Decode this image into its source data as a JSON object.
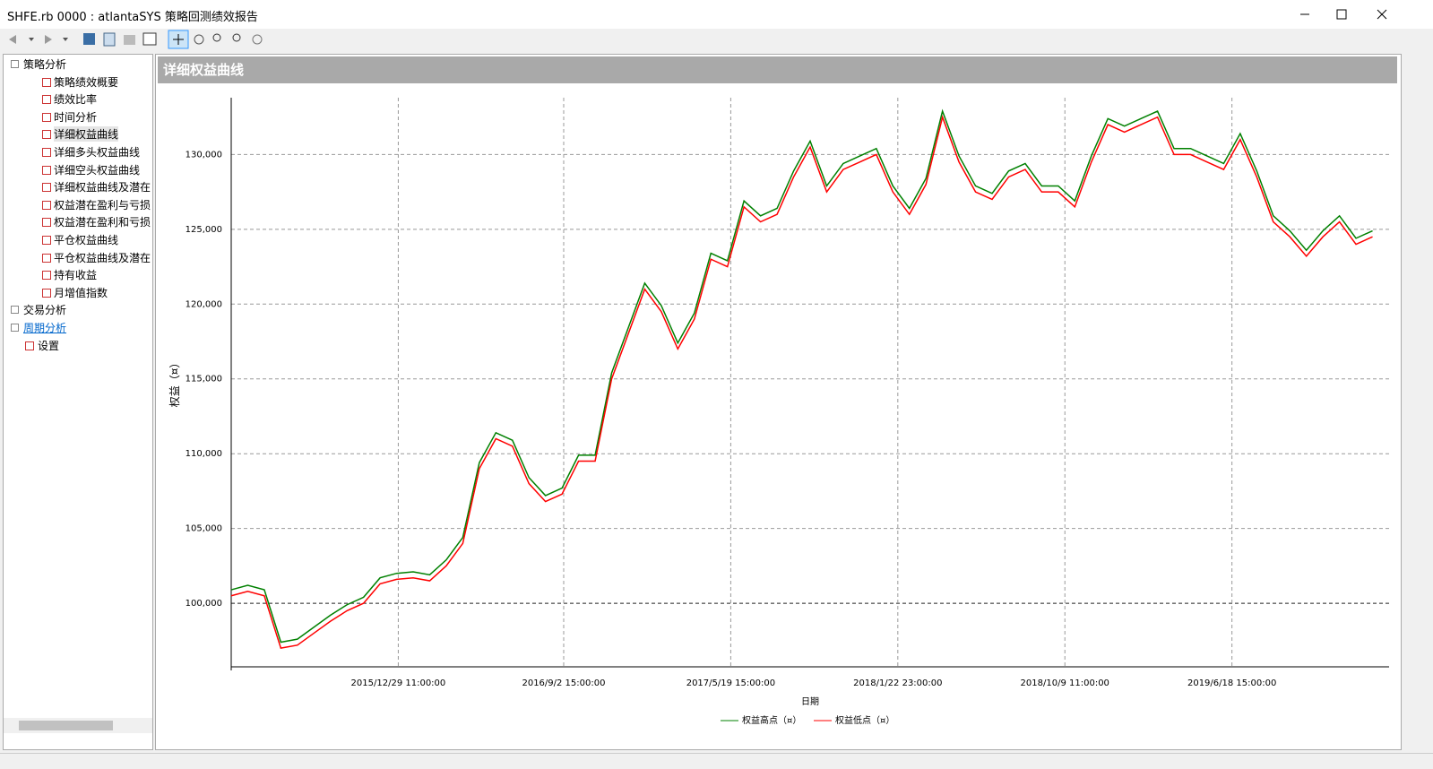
{
  "window": {
    "title": "SHFE.rb 0000 : atlantaSYS 策略回测绩效报告"
  },
  "sidebar": {
    "tree": [
      {
        "label": "策略分析",
        "level": 0
      },
      {
        "label": "策略绩效概要",
        "level": 1
      },
      {
        "label": "绩效比率",
        "level": 1
      },
      {
        "label": "时间分析",
        "level": 1
      },
      {
        "label": "详细权益曲线",
        "level": 1
      },
      {
        "label": "详细多头权益曲线",
        "level": 1
      },
      {
        "label": "详细空头权益曲线",
        "level": 1
      },
      {
        "label": "详细权益曲线及潜在",
        "level": 1
      },
      {
        "label": "权益潜在盈利与亏损",
        "level": 1
      },
      {
        "label": "权益潜在盈利和亏损",
        "level": 1
      },
      {
        "label": "平仓权益曲线",
        "level": 1
      },
      {
        "label": "平仓权益曲线及潜在",
        "level": 1
      },
      {
        "label": "持有收益",
        "level": 1
      },
      {
        "label": "月增值指数",
        "level": 1
      },
      {
        "label": "交易分析",
        "level": 0
      },
      {
        "label": "周期分析",
        "level": 0
      },
      {
        "label": "设置",
        "level": 0
      }
    ]
  },
  "panel": {
    "title": "详细权益曲线"
  },
  "chart_data": {
    "type": "line",
    "x_label": "日期",
    "y_label": "权益（¤）",
    "x": [
      0,
      10,
      20,
      30,
      40,
      50,
      60,
      70,
      80,
      90,
      100,
      110,
      120,
      130,
      140,
      150,
      160,
      170,
      180,
      190,
      200,
      210,
      220,
      230,
      240,
      250,
      260,
      270,
      280,
      290,
      300,
      310,
      320,
      330,
      340,
      350,
      360,
      370,
      380,
      390,
      400,
      410,
      420,
      430,
      440,
      450,
      460,
      470,
      480,
      490,
      500,
      510,
      520,
      530,
      540,
      550,
      560,
      570,
      580,
      590,
      600,
      610,
      620,
      630,
      640,
      650,
      660,
      670,
      680,
      690
    ],
    "series": [
      {
        "name": "权益高点（¤）",
        "color": "#008000",
        "values": [
          100900,
          101200,
          100900,
          97400,
          97600,
          98400,
          99200,
          99900,
          100400,
          101700,
          102000,
          102100,
          101900,
          102900,
          104400,
          109400,
          111400,
          110900,
          108400,
          107200,
          107700,
          109900,
          109900,
          115400,
          118400,
          121400,
          119900,
          117400,
          119400,
          123400,
          122900,
          126900,
          125900,
          126400,
          128900,
          130900,
          127900,
          129400,
          129900,
          130400,
          127900,
          126400,
          128400,
          132900,
          129900,
          127900,
          127400,
          128900,
          129400,
          127900,
          127900,
          126900,
          129900,
          132400,
          131900,
          132400,
          132900,
          130400,
          130400,
          129900,
          129400,
          131400,
          128900,
          125900,
          124900,
          123600,
          124900,
          125900,
          124400,
          124900
        ]
      },
      {
        "name": "权益低点（¤）",
        "color": "#ff0000",
        "values": [
          100500,
          100800,
          100500,
          97000,
          97200,
          98000,
          98800,
          99500,
          100000,
          101300,
          101600,
          101700,
          101500,
          102500,
          104000,
          109000,
          111000,
          110500,
          108000,
          106800,
          107300,
          109500,
          109500,
          115000,
          118000,
          121000,
          119500,
          117000,
          119000,
          123000,
          122500,
          126500,
          125500,
          126000,
          128500,
          130500,
          127500,
          129000,
          129500,
          130000,
          127500,
          126000,
          128000,
          132500,
          129500,
          127500,
          127000,
          128500,
          129000,
          127500,
          127500,
          126500,
          129500,
          132000,
          131500,
          132000,
          132500,
          130000,
          130000,
          129500,
          129000,
          131000,
          128500,
          125500,
          124500,
          123200,
          124500,
          125500,
          124000,
          124500
        ]
      }
    ],
    "xlim": [
      0,
      700
    ],
    "xticks": [
      {
        "value": 101,
        "label": "2015/12/29 11:00:00"
      },
      {
        "value": 201,
        "label": "2016/9/2 15:00:00"
      },
      {
        "value": 302,
        "label": "2017/5/19 15:00:00"
      },
      {
        "value": 403,
        "label": "2018/1/22 23:00:00"
      },
      {
        "value": 504,
        "label": "2018/10/9 11:00:00"
      },
      {
        "value": 605,
        "label": "2019/6/18 15:00:00"
      }
    ],
    "ylim": [
      95750,
      133800
    ],
    "yticks": [
      {
        "value": 100000,
        "label": "100,000"
      },
      {
        "value": 105000,
        "label": "105,000"
      },
      {
        "value": 110000,
        "label": "110,000"
      },
      {
        "value": 115000,
        "label": "115,000"
      },
      {
        "value": 120000,
        "label": "120,000"
      },
      {
        "value": 125000,
        "label": "125,000"
      },
      {
        "value": 130000,
        "label": "130,000"
      }
    ],
    "grid": true,
    "legend": "bottom"
  }
}
